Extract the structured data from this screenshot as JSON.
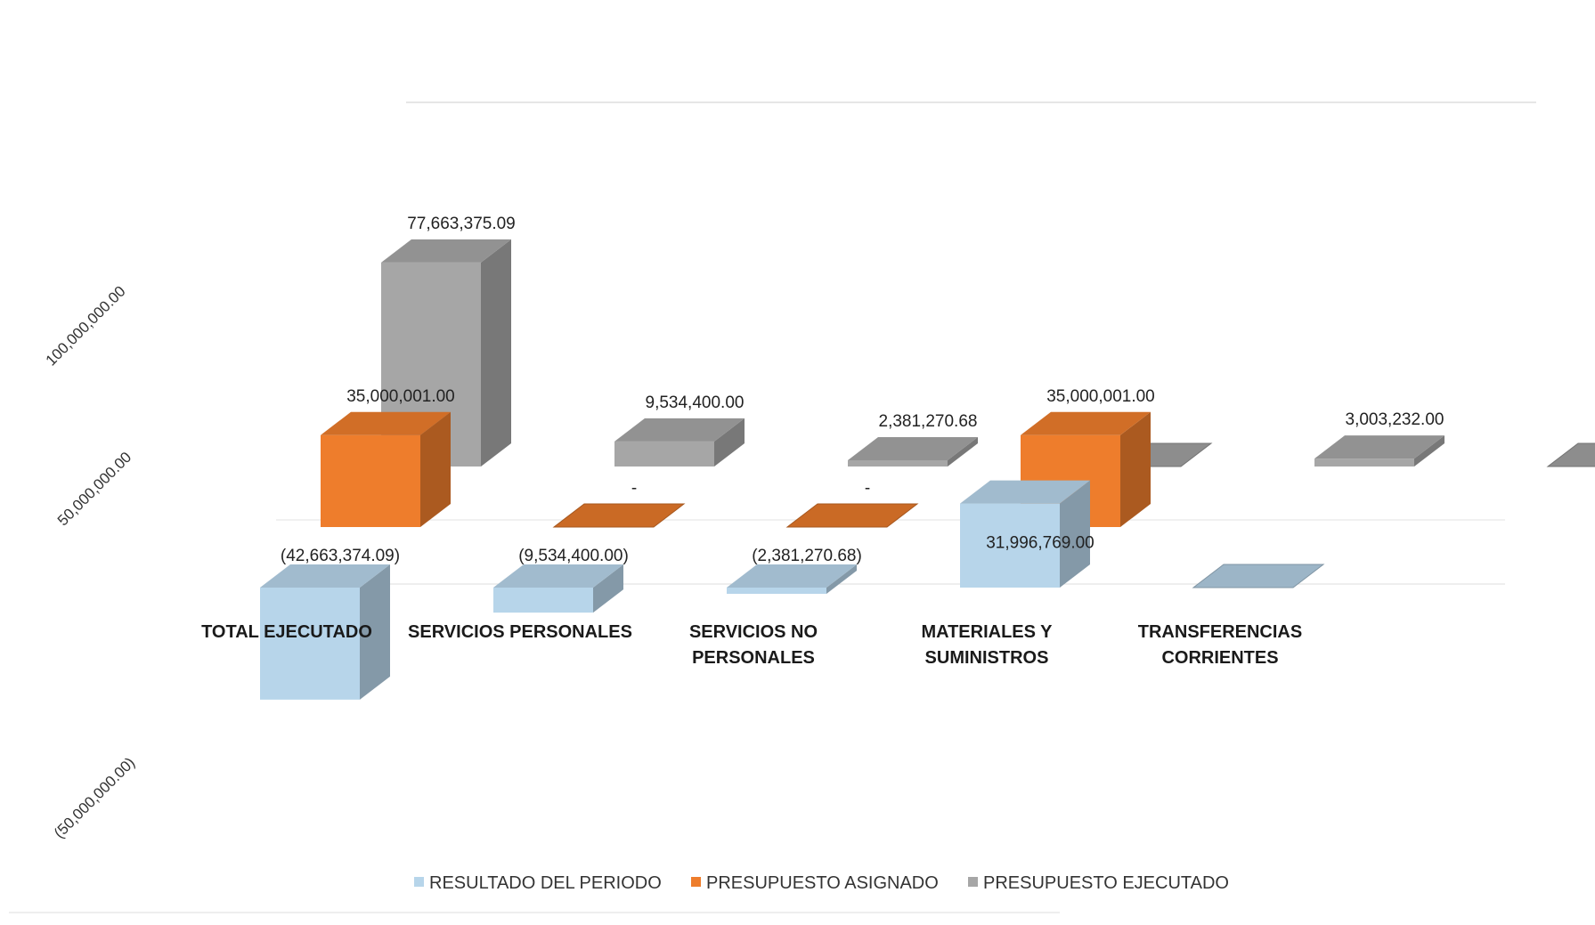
{
  "chart_data": {
    "type": "bar",
    "variant": "3d-column-depth",
    "title": "",
    "xlabel": "",
    "ylabel": "",
    "ylim": [
      -50000000,
      100000000
    ],
    "y_ticks": [
      100000000,
      50000000,
      -50000000
    ],
    "y_tick_labels": [
      "100,000,000.00",
      "50,000,000.00",
      "(50,000,000.00)"
    ],
    "categories": [
      "TOTAL EJECUTADO",
      "SERVICIOS PERSONALES",
      "SERVICIOS NO PERSONALES",
      "MATERIALES Y SUMINISTROS",
      "TRANSFERENCIAS CORRIENTES",
      ""
    ],
    "category_lines": [
      [
        "TOTAL EJECUTADO"
      ],
      [
        "SERVICIOS PERSONALES"
      ],
      [
        "SERVICIOS NO",
        "PERSONALES"
      ],
      [
        "MATERIALES Y",
        "SUMINISTROS"
      ],
      [
        "TRANSFERENCIAS",
        "CORRIENTES"
      ],
      []
    ],
    "series": [
      {
        "name": "RESULTADO DEL PERIODO",
        "color": "#b7d5ea",
        "values": [
          -42663374.09,
          -9534400.0,
          -2381270.68,
          31996769.0,
          0,
          null
        ],
        "labels": [
          "(42,663,374.09)",
          "(9,534,400.00)",
          "(2,381,270.68)",
          "31,996,769.00",
          "",
          ""
        ]
      },
      {
        "name": "PRESUPUESTO ASIGNADO",
        "color": "#ee7d2c",
        "values": [
          35000001.0,
          0,
          0,
          35000001.0,
          null,
          null
        ],
        "labels": [
          "35,000,001.00",
          "-",
          "-",
          "35,000,001.00",
          "",
          ""
        ]
      },
      {
        "name": "PRESUPUESTO EJECUTADO",
        "color": "#a6a6a6",
        "values": [
          77663375.09,
          9534400.0,
          2381270.68,
          0,
          3003232.0,
          0
        ],
        "labels": [
          "77,663,375.09",
          "9,534,400.00",
          "2,381,270.68",
          "",
          "3,003,232.00",
          "-"
        ]
      }
    ],
    "legend_position": "bottom",
    "grid": true
  }
}
